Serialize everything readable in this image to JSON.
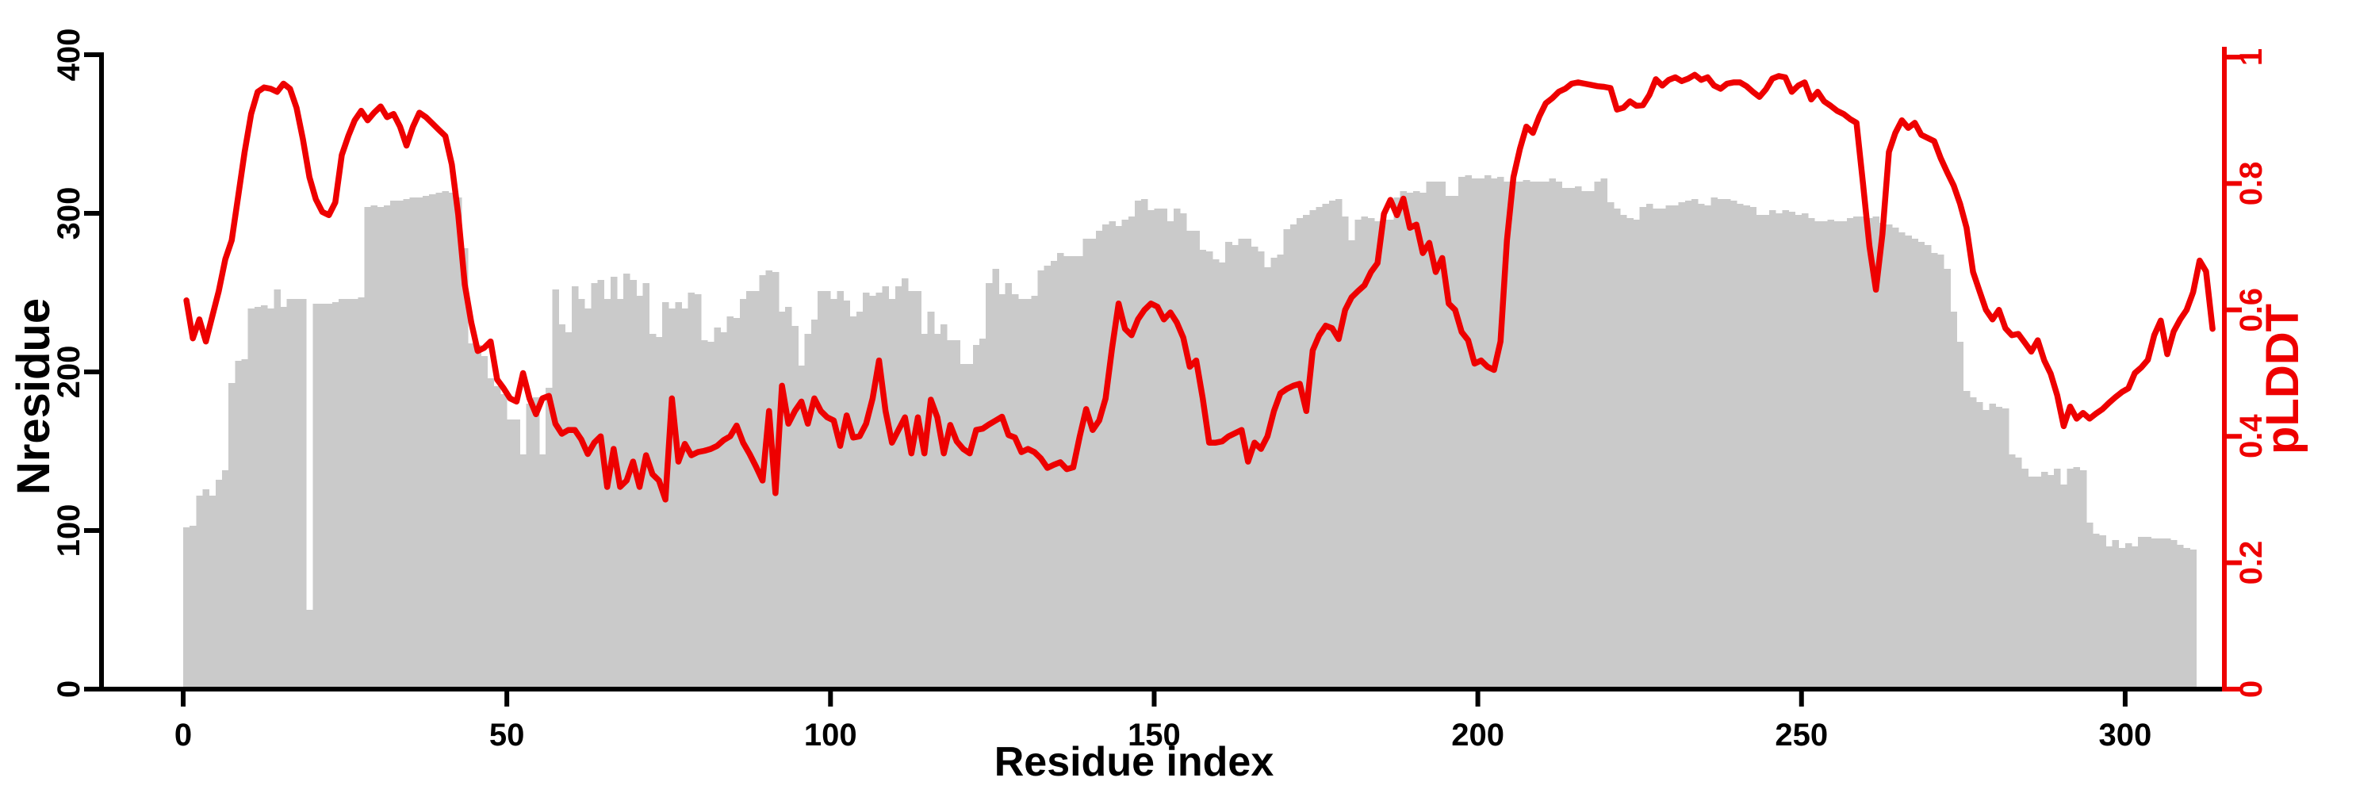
{
  "figure_title": "",
  "chart_data": {
    "type": "bar+line",
    "xlabel": "Residue index",
    "x_start": 0,
    "x_ticks": [
      0,
      50,
      100,
      150,
      200,
      250,
      300
    ],
    "left_axis": {
      "label": "Nresidue",
      "range": [
        0,
        400
      ],
      "ticks": [
        0,
        100,
        200,
        300,
        400
      ],
      "color": "#000000"
    },
    "right_axis": {
      "label": "pLDDT",
      "range": [
        0,
        1
      ],
      "ticks": [
        "0",
        "0.2",
        "0.4",
        "0.6",
        "0.8",
        "1"
      ],
      "tick_values": [
        0,
        0.2,
        0.4,
        0.6,
        0.8,
        1
      ],
      "color": "#ee0000"
    },
    "grid": false,
    "legend": "none",
    "series": [
      {
        "name": "Nresidue",
        "type": "bar",
        "axis": "left",
        "color": "#cacaca",
        "values": [
          102,
          103,
          122,
          126,
          122,
          132,
          138,
          193,
          207,
          208,
          240,
          241,
          242,
          240,
          252,
          241,
          246,
          246,
          246,
          50,
          243,
          243,
          243,
          244,
          246,
          246,
          246,
          247,
          304,
          305,
          304,
          305,
          308,
          308,
          309,
          310,
          310,
          311,
          312,
          313,
          314,
          313,
          310,
          278,
          218,
          217,
          210,
          196,
          191,
          186,
          170,
          170,
          148,
          180,
          184,
          148,
          190,
          252,
          230,
          225,
          254,
          246,
          240,
          256,
          258,
          246,
          260,
          246,
          262,
          258,
          248,
          256,
          224,
          222,
          244,
          240,
          244,
          240,
          250,
          249,
          220,
          219,
          228,
          225,
          235,
          234,
          246,
          251,
          251,
          261,
          264,
          263,
          238,
          241,
          229,
          204,
          224,
          233,
          251,
          251,
          246,
          251,
          245,
          235,
          238,
          250,
          248,
          250,
          254,
          246,
          254,
          259,
          251,
          251,
          224,
          238,
          224,
          230,
          220,
          220,
          205,
          205,
          217,
          221,
          256,
          265,
          249,
          256,
          249,
          246,
          246,
          248,
          264,
          267,
          270,
          275,
          273,
          273,
          273,
          284,
          284,
          289,
          293,
          295,
          292,
          296,
          298,
          308,
          309,
          302,
          303,
          303,
          295,
          303,
          300,
          289,
          289,
          277,
          276,
          271,
          269,
          282,
          280,
          284,
          284,
          279,
          276,
          266,
          272,
          274,
          290,
          293,
          297,
          299,
          302,
          304,
          306,
          308,
          309,
          298,
          283,
          296,
          298,
          297,
          295,
          296,
          296,
          310,
          314,
          313,
          314,
          313,
          320,
          320,
          320,
          311,
          311,
          323,
          324,
          322,
          322,
          324,
          322,
          323,
          320,
          320,
          320,
          321,
          320,
          320,
          320,
          322,
          320,
          316,
          316,
          317,
          314,
          314,
          320,
          322,
          307,
          303,
          299,
          297,
          296,
          304,
          306,
          303,
          303,
          305,
          305,
          307,
          308,
          309,
          306,
          305,
          310,
          309,
          309,
          308,
          306,
          305,
          304,
          299,
          299,
          302,
          300,
          302,
          301,
          299,
          300,
          297,
          295,
          295,
          296,
          295,
          295,
          297,
          298,
          298,
          297,
          298,
          294,
          293,
          291,
          288,
          286,
          284,
          282,
          280,
          275,
          274,
          265,
          238,
          219,
          188,
          184,
          181,
          176,
          180,
          178,
          177,
          148,
          146,
          139,
          134,
          134,
          137,
          135,
          139,
          129,
          139,
          140,
          138,
          105,
          98,
          97,
          90,
          94,
          89,
          92,
          90,
          96,
          96,
          95,
          95,
          95,
          94,
          91,
          89,
          88
        ]
      },
      {
        "name": "pLDDT",
        "type": "line",
        "axis": "right",
        "color": "#ee0000",
        "values": [
          0.615,
          0.555,
          0.585,
          0.55,
          0.59,
          0.63,
          0.68,
          0.71,
          0.78,
          0.85,
          0.91,
          0.945,
          0.952,
          0.95,
          0.945,
          0.958,
          0.95,
          0.92,
          0.87,
          0.81,
          0.775,
          0.755,
          0.75,
          0.77,
          0.845,
          0.875,
          0.9,
          0.915,
          0.9,
          0.912,
          0.922,
          0.905,
          0.91,
          0.89,
          0.86,
          0.89,
          0.912,
          0.905,
          0.895,
          0.885,
          0.875,
          0.83,
          0.75,
          0.64,
          0.58,
          0.535,
          0.54,
          0.55,
          0.49,
          0.476,
          0.46,
          0.455,
          0.5,
          0.46,
          0.435,
          0.46,
          0.464,
          0.42,
          0.404,
          0.41,
          0.41,
          0.395,
          0.372,
          0.39,
          0.4,
          0.32,
          0.38,
          0.32,
          0.33,
          0.36,
          0.32,
          0.37,
          0.34,
          0.33,
          0.3,
          0.46,
          0.36,
          0.388,
          0.37,
          0.375,
          0.377,
          0.38,
          0.385,
          0.394,
          0.4,
          0.417,
          0.39,
          0.372,
          0.352,
          0.33,
          0.44,
          0.31,
          0.48,
          0.42,
          0.44,
          0.455,
          0.42,
          0.46,
          0.44,
          0.43,
          0.425,
          0.385,
          0.433,
          0.398,
          0.4,
          0.42,
          0.46,
          0.52,
          0.44,
          0.39,
          0.41,
          0.43,
          0.373,
          0.43,
          0.373,
          0.458,
          0.43,
          0.373,
          0.418,
          0.392,
          0.38,
          0.373,
          0.41,
          0.412,
          0.419,
          0.425,
          0.431,
          0.402,
          0.398,
          0.375,
          0.38,
          0.375,
          0.365,
          0.35,
          0.355,
          0.359,
          0.348,
          0.351,
          0.4,
          0.443,
          0.41,
          0.425,
          0.46,
          0.54,
          0.61,
          0.57,
          0.56,
          0.585,
          0.6,
          0.61,
          0.605,
          0.585,
          0.596,
          0.58,
          0.556,
          0.51,
          0.52,
          0.46,
          0.39,
          0.39,
          0.392,
          0.4,
          0.405,
          0.41,
          0.36,
          0.39,
          0.38,
          0.4,
          0.44,
          0.468,
          0.475,
          0.48,
          0.483,
          0.44,
          0.536,
          0.56,
          0.575,
          0.571,
          0.554,
          0.6,
          0.62,
          0.63,
          0.639,
          0.66,
          0.674,
          0.752,
          0.774,
          0.75,
          0.776,
          0.73,
          0.735,
          0.69,
          0.706,
          0.66,
          0.682,
          0.61,
          0.6,
          0.565,
          0.552,
          0.515,
          0.52,
          0.51,
          0.505,
          0.55,
          0.71,
          0.81,
          0.855,
          0.89,
          0.88,
          0.906,
          0.927,
          0.935,
          0.945,
          0.95,
          0.958,
          0.96,
          0.958,
          0.956,
          0.954,
          0.953,
          0.951,
          0.917,
          0.92,
          0.93,
          0.923,
          0.924,
          0.94,
          0.965,
          0.955,
          0.964,
          0.968,
          0.962,
          0.966,
          0.972,
          0.964,
          0.968,
          0.955,
          0.95,
          0.958,
          0.96,
          0.96,
          0.954,
          0.945,
          0.937,
          0.949,
          0.966,
          0.97,
          0.968,
          0.945,
          0.955,
          0.96,
          0.933,
          0.945,
          0.93,
          0.923,
          0.915,
          0.91,
          0.902,
          0.896,
          0.8,
          0.7,
          0.632,
          0.72,
          0.85,
          0.88,
          0.9,
          0.888,
          0.896,
          0.877,
          0.872,
          0.867,
          0.84,
          0.818,
          0.797,
          0.768,
          0.73,
          0.66,
          0.63,
          0.6,
          0.585,
          0.6,
          0.571,
          0.56,
          0.562,
          0.548,
          0.534,
          0.552,
          0.52,
          0.499,
          0.465,
          0.416,
          0.447,
          0.428,
          0.437,
          0.428,
          0.436,
          0.443,
          0.453,
          0.462,
          0.47,
          0.476,
          0.5,
          0.509,
          0.521,
          0.56,
          0.583,
          0.53,
          0.566,
          0.585,
          0.6,
          0.628,
          0.678,
          0.661,
          0.57
        ]
      }
    ]
  }
}
